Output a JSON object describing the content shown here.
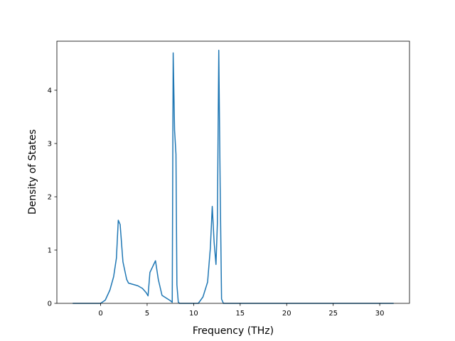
{
  "chart_data": {
    "type": "line",
    "title": "",
    "xlabel": "Frequency (THz)",
    "ylabel": "Density of States",
    "xlim": [
      -4.7,
      33.2
    ],
    "ylim": [
      0,
      4.92
    ],
    "x_ticks": [
      0,
      5,
      10,
      15,
      20,
      25,
      30
    ],
    "y_ticks": [
      0,
      1,
      2,
      3,
      4
    ],
    "grid": false,
    "legend": "none",
    "series": [
      {
        "color": "#1f77b4",
        "x": [
          -3.0,
          0.0,
          0.5,
          1.0,
          1.4,
          1.7,
          1.9,
          2.1,
          2.4,
          2.8,
          3.0,
          4.0,
          4.5,
          4.9,
          5.1,
          5.3,
          5.9,
          6.2,
          6.6,
          7.5,
          7.7,
          7.8,
          7.95,
          8.1,
          8.2,
          8.35,
          8.5,
          10.5,
          11.0,
          11.5,
          11.8,
          12.0,
          12.2,
          12.4,
          12.55,
          12.7,
          12.85,
          13.0,
          13.2,
          31.5
        ],
        "y": [
          0.0,
          0.0,
          0.06,
          0.25,
          0.5,
          0.85,
          1.56,
          1.48,
          0.78,
          0.45,
          0.38,
          0.33,
          0.28,
          0.2,
          0.14,
          0.58,
          0.8,
          0.45,
          0.15,
          0.05,
          0.02,
          4.7,
          3.25,
          2.8,
          0.35,
          0.02,
          0.0,
          0.0,
          0.12,
          0.4,
          1.05,
          1.82,
          1.15,
          0.73,
          1.5,
          4.75,
          2.2,
          0.08,
          0.0,
          0.0
        ]
      }
    ]
  }
}
